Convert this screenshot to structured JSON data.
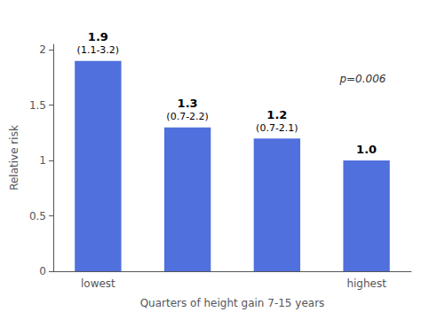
{
  "chart_data": {
    "type": "bar",
    "categories": [
      "lowest",
      null,
      null,
      "highest"
    ],
    "values": [
      1.9,
      1.3,
      1.2,
      1.0
    ],
    "data_labels": true,
    "value_labels": [
      "1.9",
      "1.3",
      "1.2",
      "1.0"
    ],
    "ci_labels": [
      "(1.1-3.2)",
      "(0.7-2.2)",
      "(0.7-2.1)",
      null
    ],
    "xlabel": "Quarters of height gain 7-15 years",
    "ylabel": "Relative risk",
    "ylim": [
      0,
      2.05
    ],
    "yticks": [
      0,
      0.5,
      1,
      1.5,
      2
    ],
    "annotations": [
      "p=0.006"
    ],
    "grid": false
  }
}
